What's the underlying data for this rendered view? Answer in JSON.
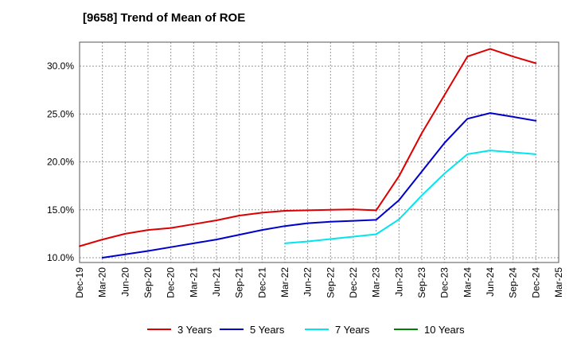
{
  "chart_data": {
    "type": "line",
    "title": "[9658]  Trend of Mean of ROE",
    "xlabel": "",
    "ylabel": "",
    "x": [
      "Dec-19",
      "Mar-20",
      "Jun-20",
      "Sep-20",
      "Dec-20",
      "Mar-21",
      "Jun-21",
      "Sep-21",
      "Dec-21",
      "Mar-22",
      "Jun-22",
      "Sep-22",
      "Dec-22",
      "Mar-23",
      "Jun-23",
      "Sep-23",
      "Dec-23",
      "Mar-24",
      "Jun-24",
      "Sep-24",
      "Dec-24",
      "Mar-25"
    ],
    "ylim": [
      9.5,
      32.5
    ],
    "yticks": [
      10.0,
      15.0,
      20.0,
      25.0,
      30.0
    ],
    "ytick_labels": [
      "10.0%",
      "15.0%",
      "20.0%",
      "25.0%",
      "30.0%"
    ],
    "grid": true,
    "legend_position": "bottom",
    "series": [
      {
        "name": "3 Years",
        "color": "#dd0000",
        "values": [
          11.2,
          11.9,
          12.5,
          12.9,
          13.1,
          13.5,
          13.9,
          14.4,
          14.7,
          14.9,
          14.95,
          15.0,
          15.05,
          14.95,
          18.5,
          23.0,
          27.0,
          31.0,
          31.8,
          31.0,
          30.3,
          null
        ]
      },
      {
        "name": "5 Years",
        "color": "#0000cc",
        "values": [
          null,
          10.0,
          10.35,
          10.7,
          11.1,
          11.5,
          11.9,
          12.4,
          12.9,
          13.3,
          13.6,
          13.75,
          13.85,
          13.95,
          16.0,
          19.0,
          22.0,
          24.5,
          25.1,
          24.7,
          24.3,
          null
        ]
      },
      {
        "name": "7 Years",
        "color": "#00e5ee",
        "values": [
          null,
          null,
          null,
          null,
          null,
          null,
          null,
          null,
          null,
          11.5,
          11.7,
          11.95,
          12.2,
          12.45,
          14.0,
          16.5,
          18.8,
          20.8,
          21.2,
          21.0,
          20.8,
          null
        ]
      },
      {
        "name": "10 Years",
        "color": "#008000",
        "values": [
          null,
          null,
          null,
          null,
          null,
          null,
          null,
          null,
          null,
          null,
          null,
          null,
          null,
          null,
          null,
          null,
          null,
          null,
          null,
          null,
          null,
          null
        ]
      }
    ]
  }
}
